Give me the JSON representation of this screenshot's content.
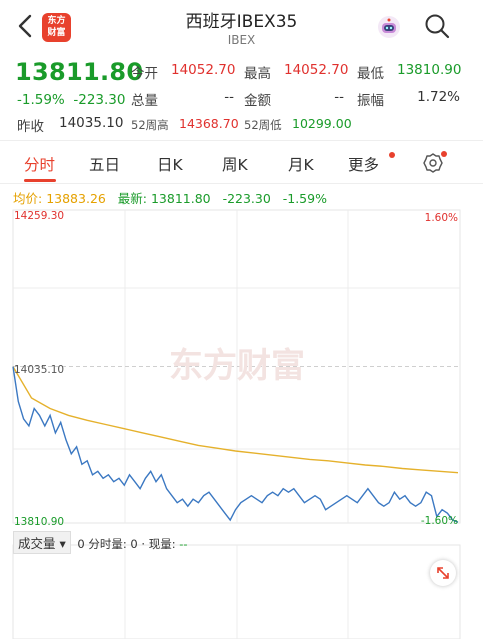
{
  "header": {
    "title": "西班牙IBEX35",
    "subtitle": "IBEX",
    "logo_line1": "东方",
    "logo_line2": "财富"
  },
  "quote": {
    "price": "13811.80",
    "change_pct": "-1.59%",
    "change_abs": "-223.30",
    "open_label": "今开",
    "open": "14052.70",
    "high_label": "最高",
    "high": "14052.70",
    "low_label": "最低",
    "low": "13810.90",
    "volume_label": "总量",
    "volume": "--",
    "amount_label": "金额",
    "amount": "--",
    "amplitude_label": "振幅",
    "amplitude": "1.72%",
    "prev_close_label": "昨收",
    "prev_close": "14035.10",
    "w52_high_label": "52周高",
    "w52_high": "14368.70",
    "w52_low_label": "52周低",
    "w52_low": "10299.00"
  },
  "tabs": [
    "分时",
    "五日",
    "日K",
    "周K",
    "月K",
    "更多"
  ],
  "avg_row": {
    "avg_label": "均价:",
    "avg_value": "13883.26",
    "new_label": "最新:",
    "new_value": "13811.80",
    "new_change": "-223.30",
    "new_pct": "-1.59%"
  },
  "chart_data": {
    "type": "line",
    "ylim": [
      13810.9,
      14259.3
    ],
    "y_tick_labels_left": [
      "14259.30",
      "14035.10",
      "13810.90"
    ],
    "y_tick_labels_right": [
      "1.60%",
      "-1.60%"
    ],
    "prev_close": 14035.1,
    "watermark": "东方财富",
    "series": [
      {
        "role": "price",
        "color": "#3b78c2",
        "values": [
          14035,
          13985,
          13960,
          13950,
          13975,
          13965,
          13950,
          13965,
          13940,
          13955,
          13930,
          13910,
          13920,
          13895,
          13900,
          13880,
          13885,
          13875,
          13880,
          13870,
          13875,
          13865,
          13880,
          13870,
          13860,
          13875,
          13885,
          13870,
          13880,
          13860,
          13850,
          13840,
          13845,
          13835,
          13845,
          13840,
          13850,
          13855,
          13845,
          13835,
          13825,
          13815,
          13830,
          13840,
          13845,
          13850,
          13845,
          13840,
          13850,
          13855,
          13850,
          13860,
          13855,
          13860,
          13850,
          13840,
          13845,
          13850,
          13845,
          13830,
          13835,
          13840,
          13845,
          13850,
          13845,
          13840,
          13850,
          13860,
          13850,
          13840,
          13835,
          13840,
          13855,
          13845,
          13850,
          13840,
          13835,
          13840,
          13855,
          13850,
          13820,
          13830,
          13825,
          13815,
          13812
        ]
      },
      {
        "role": "average",
        "color": "#e5b12c",
        "values": [
          14035,
          13990,
          13975,
          13965,
          13958,
          13952,
          13946,
          13940,
          13934,
          13928,
          13922,
          13918,
          13914,
          13911,
          13908,
          13905,
          13902,
          13900,
          13897,
          13894,
          13892,
          13889,
          13887,
          13885,
          13883
        ]
      }
    ]
  },
  "volume_row": {
    "dropdown": "成交量",
    "text": "0 分时量: 0 · 现量:",
    "dash": "--"
  }
}
